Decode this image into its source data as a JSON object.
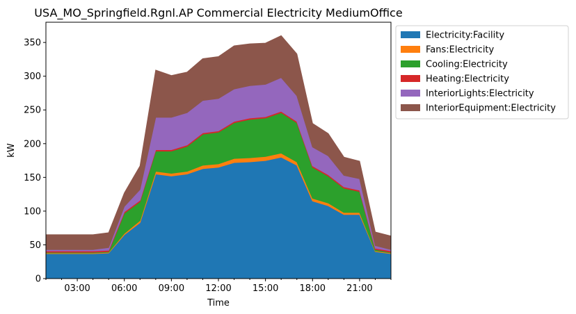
{
  "chart_data": {
    "type": "area",
    "stacked": true,
    "title": "USA_MO_Springfield.Rgnl.AP Commercial Electricity MediumOffice",
    "xlabel": "Time",
    "ylabel": "kW",
    "x": [
      "01:00",
      "02:00",
      "03:00",
      "04:00",
      "05:00",
      "06:00",
      "07:00",
      "08:00",
      "09:00",
      "10:00",
      "11:00",
      "12:00",
      "13:00",
      "14:00",
      "15:00",
      "16:00",
      "17:00",
      "18:00",
      "19:00",
      "20:00",
      "21:00",
      "22:00",
      "23:00"
    ],
    "x_ticks": [
      "03:00",
      "06:00",
      "09:00",
      "12:00",
      "15:00",
      "18:00",
      "21:00"
    ],
    "xlim": [
      "01:00",
      "23:00"
    ],
    "ylim": [
      0,
      380
    ],
    "y_ticks": [
      0,
      50,
      100,
      150,
      200,
      250,
      300,
      350
    ],
    "grid": false,
    "legend_position": "outside-top-right",
    "series": [
      {
        "name": "Electricity:Facility",
        "color": "#1f77b4",
        "values": [
          37,
          37,
          37,
          37,
          38,
          65,
          83,
          155,
          152,
          155,
          163,
          165,
          172,
          173,
          175,
          180,
          168,
          115,
          108,
          95,
          95,
          40,
          37
        ]
      },
      {
        "name": "Fans:Electricity",
        "color": "#ff7f0e",
        "values": [
          1,
          1,
          1,
          1,
          1,
          2,
          3,
          4,
          4,
          4,
          5,
          5,
          6,
          6,
          6,
          6,
          5,
          4,
          4,
          3,
          3,
          1,
          1
        ]
      },
      {
        "name": "Cooling:Electricity",
        "color": "#2ca02c",
        "values": [
          1,
          1,
          1,
          1,
          1,
          30,
          28,
          30,
          33,
          37,
          46,
          47,
          53,
          57,
          57,
          60,
          58,
          46,
          40,
          36,
          31,
          2,
          1
        ]
      },
      {
        "name": "Heating:Electricity",
        "color": "#d62728",
        "values": [
          2,
          2,
          2,
          2,
          2,
          2,
          2,
          2,
          2,
          2,
          2,
          2,
          2,
          2,
          2,
          2,
          2,
          2,
          2,
          2,
          2,
          2,
          2
        ]
      },
      {
        "name": "InteriorLights:Electricity",
        "color": "#9467bd",
        "values": [
          2,
          2,
          2,
          2,
          4,
          8,
          16,
          48,
          48,
          48,
          48,
          48,
          48,
          48,
          48,
          50,
          38,
          28,
          28,
          17,
          17,
          4,
          2
        ]
      },
      {
        "name": "InteriorEquipment:Electricity",
        "color": "#8c564b",
        "values": [
          22,
          22,
          22,
          22,
          22,
          20,
          35,
          70,
          62,
          60,
          62,
          62,
          64,
          62,
          61,
          62,
          62,
          35,
          33,
          27,
          26,
          20,
          20
        ]
      }
    ]
  }
}
